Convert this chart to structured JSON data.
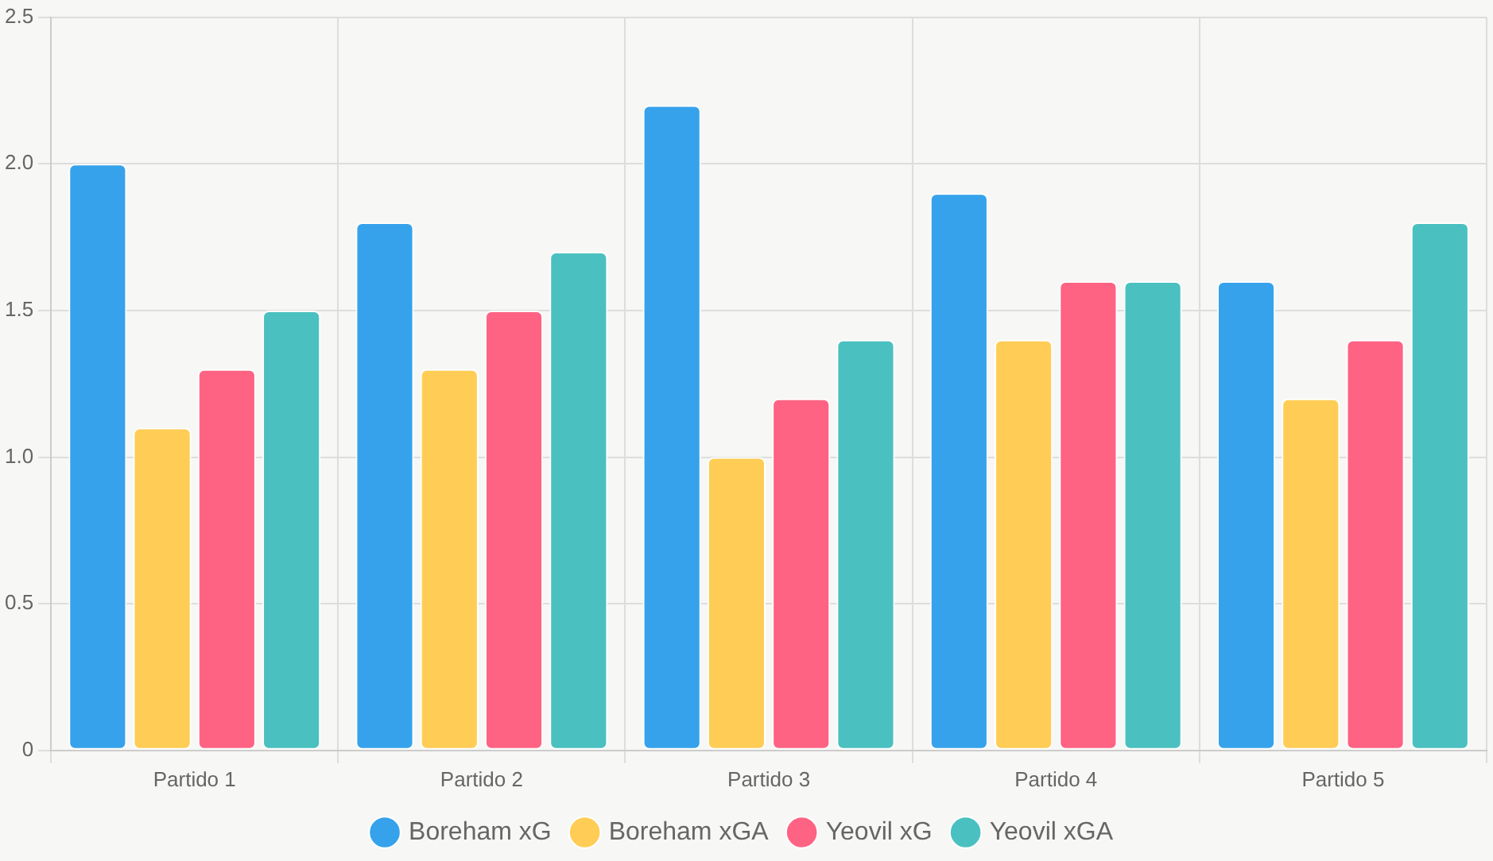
{
  "chart_data": {
    "type": "bar",
    "categories": [
      "Partido 1",
      "Partido 2",
      "Partido 3",
      "Partido 4",
      "Partido 5"
    ],
    "series": [
      {
        "name": "Boreham xG",
        "color": "#36a2eb",
        "values": [
          2.0,
          1.8,
          2.2,
          1.9,
          1.6
        ]
      },
      {
        "name": "Boreham xGA",
        "color": "#ffcd56",
        "values": [
          1.1,
          1.3,
          1.0,
          1.4,
          1.2
        ]
      },
      {
        "name": "Yeovil xG",
        "color": "#ff6384",
        "values": [
          1.3,
          1.5,
          1.2,
          1.6,
          1.4
        ]
      },
      {
        "name": "Yeovil xGA",
        "color": "#4bc0c0",
        "values": [
          1.5,
          1.7,
          1.4,
          1.6,
          1.8
        ]
      }
    ],
    "ylim": [
      0,
      2.5
    ],
    "yticks": [
      0,
      0.5,
      {
        "value": 1,
        "label": "1.0"
      },
      1.5,
      {
        "value": 2,
        "label": "2.0"
      },
      2.5
    ],
    "grid": true,
    "legend": "bottom"
  }
}
